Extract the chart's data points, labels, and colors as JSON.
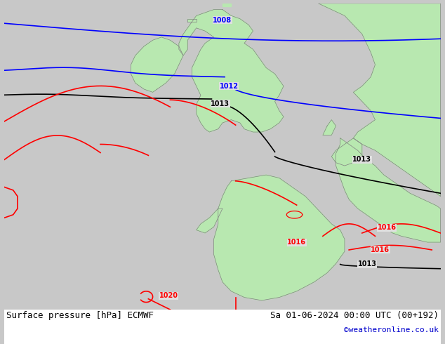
{
  "title_left": "Surface pressure [hPa] ECMWF",
  "title_right": "Sa 01-06-2024 00:00 UTC (00+192)",
  "credit": "©weatheronline.co.uk",
  "bg_color": "#e0e0e0",
  "land_color": "#b8e8b0",
  "land_border_color": "#808080",
  "fig_width": 6.34,
  "fig_height": 4.9,
  "dpi": 100,
  "title_fontsize": 9,
  "credit_fontsize": 8,
  "credit_color": "#0000cc",
  "isobar_lw": 1.2,
  "label_fontsize": 7
}
